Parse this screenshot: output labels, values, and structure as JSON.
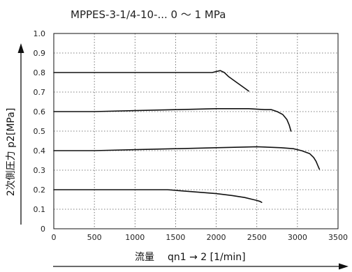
{
  "chart_data": {
    "type": "line",
    "title": "MPPES-3-1/4-10-...   0 〜 1 MPa",
    "xlabel_prefix": "流量",
    "xlabel": "qn1 → 2 [1/min]",
    "ylabel": "2次側圧力   p2[MPa]",
    "xlim": [
      0,
      3500
    ],
    "ylim": [
      0,
      1.0
    ],
    "xticks": [
      0,
      500,
      1000,
      1500,
      2000,
      2500,
      3000,
      3500
    ],
    "xtick_labels": [
      "0",
      "500",
      "1000",
      "1500",
      "2000",
      "2500",
      "3000",
      "3500"
    ],
    "yticks": [
      0,
      0.1,
      0.2,
      0.3,
      0.4,
      0.5,
      0.6,
      0.7,
      0.8,
      0.9,
      1.0
    ],
    "ytick_labels": [
      "0",
      "0.1",
      "0.2",
      "0.3",
      "0.4",
      "0.5",
      "0.6",
      "0.7",
      "0.8",
      "0.9",
      "1.0"
    ],
    "grid": true,
    "series": [
      {
        "x": [
          0,
          500,
          1000,
          1500,
          1800,
          1950,
          2050,
          2100,
          2150,
          2250,
          2350,
          2400
        ],
        "y": [
          0.8,
          0.8,
          0.8,
          0.8,
          0.8,
          0.8,
          0.81,
          0.8,
          0.78,
          0.75,
          0.72,
          0.705
        ]
      },
      {
        "x": [
          0,
          500,
          1000,
          1500,
          2000,
          2400,
          2600,
          2680,
          2750,
          2820,
          2870,
          2900,
          2920
        ],
        "y": [
          0.6,
          0.6,
          0.605,
          0.61,
          0.615,
          0.615,
          0.61,
          0.61,
          0.6,
          0.585,
          0.56,
          0.53,
          0.5
        ]
      },
      {
        "x": [
          0,
          500,
          1000,
          1500,
          2000,
          2500,
          2800,
          2950,
          3050,
          3150,
          3200,
          3230,
          3250,
          3270
        ],
        "y": [
          0.4,
          0.4,
          0.405,
          0.41,
          0.415,
          0.42,
          0.415,
          0.41,
          0.4,
          0.385,
          0.365,
          0.345,
          0.325,
          0.305
        ]
      },
      {
        "x": [
          0,
          500,
          1000,
          1400,
          1700,
          2000,
          2200,
          2350,
          2450,
          2500,
          2540,
          2560
        ],
        "y": [
          0.2,
          0.2,
          0.2,
          0.2,
          0.19,
          0.18,
          0.17,
          0.16,
          0.15,
          0.145,
          0.14,
          0.135
        ]
      }
    ]
  }
}
